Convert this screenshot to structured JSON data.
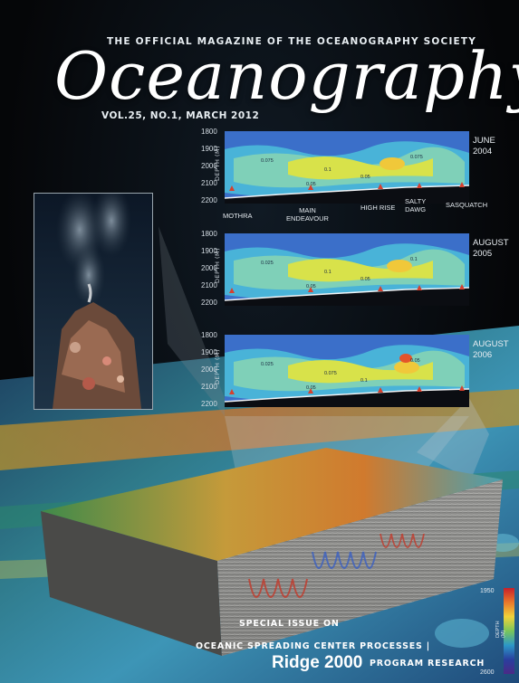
{
  "cover": {
    "tagline": "THE OFFICIAL MAGAZINE OF THE OCEANOGRAPHY SOCIETY",
    "masthead": "Oceanography",
    "issue": "VOL.25, NO.1, MARCH 2012"
  },
  "figure": {
    "depth_axis_title": "DEPTH (M)",
    "panels": [
      {
        "label": "JUNE\n2004",
        "ticks": [
          "1800",
          "1900",
          "2000",
          "2100",
          "2200"
        ],
        "contours": [
          "0.075",
          "0.1",
          "0.05",
          "0.05",
          "0.075"
        ]
      },
      {
        "label": "AUGUST\n2005",
        "ticks": [
          "1800",
          "1900",
          "2000",
          "2100",
          "2200"
        ],
        "contours": [
          "0.025",
          "0.1",
          "0.05",
          "0.05",
          "0.1"
        ]
      },
      {
        "label": "AUGUST\n2006",
        "ticks": [
          "1800",
          "1900",
          "2000",
          "2100",
          "2200"
        ],
        "contours": [
          "0.025",
          "0.075",
          "0.1",
          "0.05",
          "0.05"
        ]
      }
    ],
    "sites": [
      "MOTHRA",
      "MAIN\nENDEAVOUR",
      "HIGH RISE",
      "SALTY\nDAWG",
      "SASQUATCH"
    ]
  },
  "colorbar": {
    "top": "1950",
    "bottom": "2600",
    "title": "DEPTH (M)",
    "colors": [
      "#c8202a",
      "#e9772a",
      "#f0d23a",
      "#7ac55a",
      "#2c98c8",
      "#2a3f9e",
      "#4b2a86"
    ]
  },
  "footer": {
    "special_issue": "SPECIAL ISSUE ON",
    "topic": "OCEANIC SPREADING CENTER PROCESSES |",
    "program_name": "Ridge 2000",
    "program_suffix": "PROGRAM RESEARCH"
  }
}
